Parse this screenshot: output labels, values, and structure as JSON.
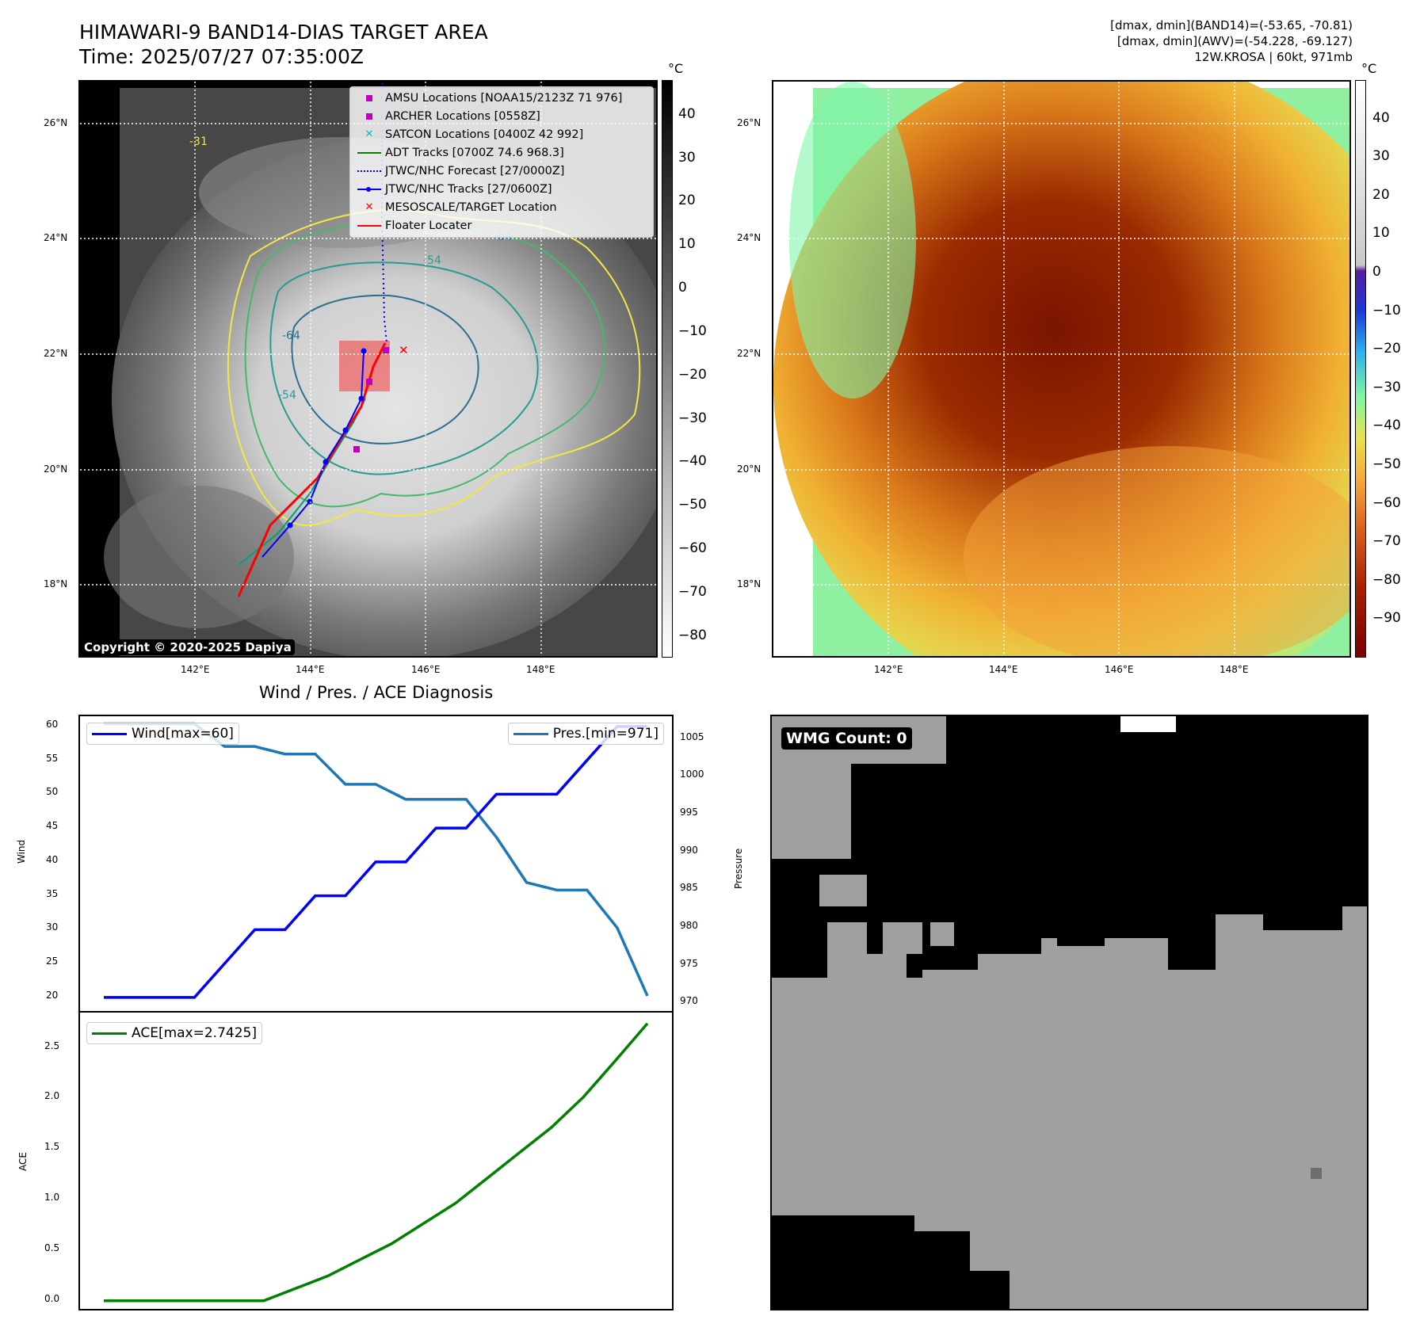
{
  "header": {
    "title_line1": "HIMAWARI-9 BAND14-DIAS TARGET AREA",
    "title_line2": "Time: 2025/07/27 07:35:00Z",
    "info_line1": "[dmax, dmin](BAND14)=(-53.65, -70.81)",
    "info_line2": "[dmax, dmin](AWV)=(-54.228, -69.127)",
    "info_line3": "12W.KROSA | 60kt, 971mb"
  },
  "map": {
    "lat_ticks": [
      "26°N",
      "24°N",
      "22°N",
      "20°N",
      "18°N"
    ],
    "lon_ticks": [
      "142°E",
      "144°E",
      "146°E",
      "148°E"
    ],
    "copyright": "Copyright © 2020-2025 Dapiya",
    "contour_labels": [
      "-31",
      "-54",
      "-64"
    ],
    "colors": {
      "ir_warm": "#3a3a3a",
      "ir_cold": "#e0e0e0",
      "track_red": "#ff0000",
      "track_blue": "#0000ff",
      "adt_green": "#008000"
    },
    "legend": [
      {
        "label": "AMSU Locations [NOAA15/2123Z 71 976]",
        "icon": "square-marker",
        "color": "#bf00bf"
      },
      {
        "label": "ARCHER Locations [0558Z]",
        "icon": "square-marker",
        "color": "#bf00bf"
      },
      {
        "label": "SATCON Locations [0400Z 42 992]",
        "icon": "x-marker",
        "color": "#00bfbf"
      },
      {
        "label": "ADT Tracks [0700Z 74.6 968.3]",
        "icon": "solid-line",
        "color": "#008000"
      },
      {
        "label": "JTWC/NHC Forecast [27/0000Z]",
        "icon": "dotted-line",
        "color": "#0000ff"
      },
      {
        "label": "JTWC/NHC Tracks [27/0600Z]",
        "icon": "line-dot",
        "color": "#0000ff"
      },
      {
        "label": "MESOSCALE/TARGET Location",
        "icon": "x-marker",
        "color": "#ff0000"
      },
      {
        "label": "Floater Locater",
        "icon": "solid-line",
        "color": "#ff0000"
      }
    ]
  },
  "colorbar_gray": {
    "unit": "°C",
    "ticks": [
      "40",
      "30",
      "20",
      "10",
      "0",
      "−10",
      "−20",
      "−30",
      "−40",
      "−50",
      "−60",
      "−70",
      "−80"
    ]
  },
  "colorbar_awv": {
    "unit": "°C",
    "ticks": [
      "40",
      "30",
      "20",
      "10",
      "0",
      "−10",
      "−20",
      "−30",
      "−40",
      "−50",
      "−60",
      "−70",
      "−80",
      "−90"
    ]
  },
  "wmg": {
    "label": "WMG Count: 0"
  },
  "chart_data": [
    {
      "type": "line",
      "title": "Wind / Pres. / ACE Diagnosis",
      "xlabel": "",
      "ylabel": "Wind",
      "ylabel_right": "Pressure",
      "ylim": [
        18.0,
        61.5
      ],
      "ylim_right": [
        969,
        1008
      ],
      "yticks": [
        "60",
        "55",
        "50",
        "45",
        "40",
        "35",
        "30",
        "25",
        "20"
      ],
      "yticks_right": [
        "1005",
        "1000",
        "995",
        "990",
        "985",
        "980",
        "975",
        "970"
      ],
      "series": [
        {
          "name": "Wind[max=60]",
          "axis": "left",
          "color": "#0000ff",
          "values": [
            20,
            20,
            20,
            20,
            25,
            30,
            30,
            35,
            35,
            40,
            40,
            45,
            45,
            50,
            50,
            50,
            55,
            60,
            60
          ]
        },
        {
          "name": "Pres.[min=971]",
          "axis": "right",
          "color": "#1f77b4",
          "values": [
            1007,
            1007,
            1007,
            1007,
            1004,
            1004,
            1003,
            1003,
            999,
            999,
            997,
            997,
            997,
            992,
            986,
            985,
            985,
            980,
            971
          ]
        }
      ]
    },
    {
      "type": "line",
      "xlabel": "",
      "ylabel": "ACE",
      "ylim": [
        -0.08,
        2.85
      ],
      "yticks": [
        "2.5",
        "2.0",
        "1.5",
        "1.0",
        "0.5",
        "0.0"
      ],
      "series": [
        {
          "name": "ACE[max=2.7425]",
          "color": "#008000",
          "values": [
            0,
            0,
            0,
            0,
            0,
            0,
            0.1225,
            0.245,
            0.405,
            0.565,
            0.765,
            0.965,
            1.215,
            1.465,
            1.715,
            2.015,
            2.375,
            2.7425
          ]
        }
      ]
    }
  ]
}
